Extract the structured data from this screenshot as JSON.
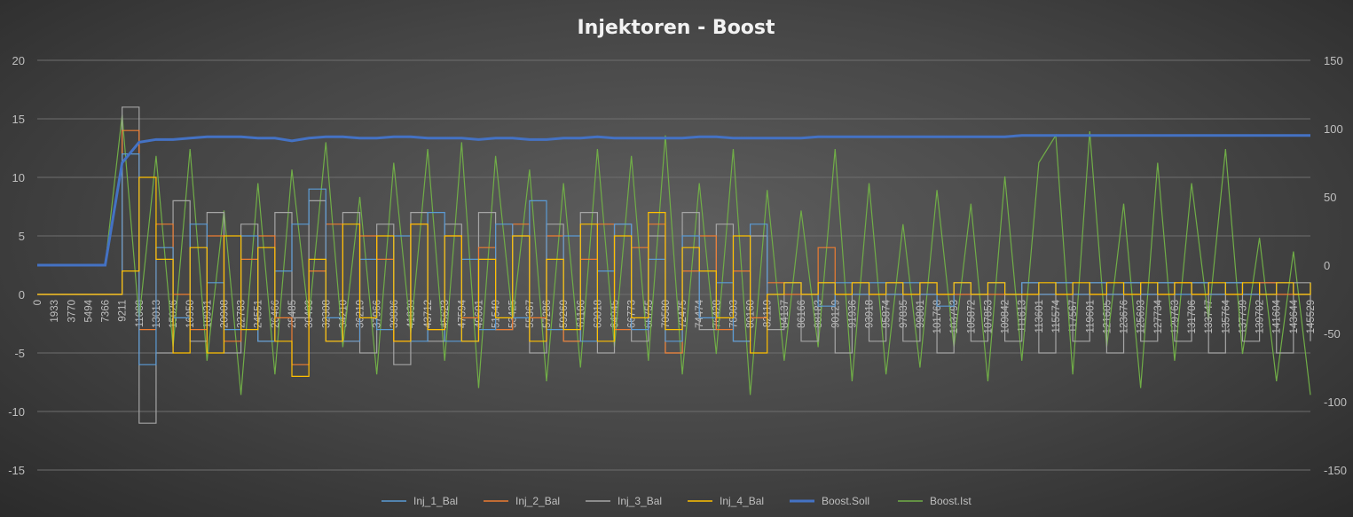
{
  "chart_data": {
    "type": "line",
    "title": "Injektoren - Boost",
    "grid": "horizontal",
    "legend_position": "bottom",
    "y_left": {
      "range": [
        -15,
        20
      ],
      "ticks": [
        20,
        15,
        10,
        5,
        0,
        -5,
        -10,
        -15
      ]
    },
    "y_right": {
      "range": [
        -150,
        150
      ],
      "ticks": [
        150,
        100,
        50,
        0,
        -50,
        -100,
        -150
      ]
    },
    "x": [
      0,
      1933,
      3770,
      5494,
      7366,
      9211,
      11088,
      13013,
      15026,
      16950,
      18931,
      20908,
      22783,
      24551,
      26466,
      28485,
      30403,
      32308,
      34210,
      36219,
      37966,
      39886,
      41839,
      43712,
      45623,
      47594,
      49601,
      51549,
      53425,
      55367,
      57286,
      59269,
      61106,
      63018,
      64945,
      66773,
      68755,
      70580,
      72475,
      74474,
      76428,
      78303,
      80160,
      82119,
      84137,
      86166,
      88183,
      90129,
      91936,
      93918,
      95874,
      97835,
      99801,
      101768,
      103793,
      105872,
      107853,
      109842,
      111613,
      113601,
      115574,
      117567,
      119601,
      121605,
      123676,
      125693,
      127734,
      129763,
      131706,
      133747,
      135764,
      137739,
      139702,
      141604,
      143644,
      145529
    ],
    "series": [
      {
        "name": "Inj_1_Bal",
        "axis": "left",
        "color": "#5b9bd5",
        "values": [
          0,
          0,
          0,
          0,
          0,
          12,
          -6,
          4,
          -2,
          6,
          1,
          -3,
          5,
          -4,
          2,
          6,
          9,
          -2,
          -4,
          3,
          -3,
          5,
          -4,
          7,
          -4,
          3,
          -3,
          6,
          -2,
          8,
          -3,
          5,
          -4,
          2,
          6,
          -3,
          3,
          -4,
          5,
          -2,
          1,
          -4,
          6,
          0,
          1,
          0,
          -1,
          1,
          0,
          1,
          0,
          1,
          0,
          -1,
          1,
          0,
          1,
          0,
          1,
          0,
          1,
          0,
          1,
          0,
          1,
          0,
          1,
          0,
          1,
          0,
          1,
          0,
          0,
          1,
          0,
          1
        ]
      },
      {
        "name": "Inj_2_Bal",
        "axis": "left",
        "color": "#ed7d31",
        "values": [
          0,
          0,
          0,
          0,
          0,
          14,
          -3,
          6,
          0,
          -3,
          5,
          -4,
          3,
          5,
          -2,
          -6,
          2,
          6,
          -4,
          5,
          3,
          -4,
          6,
          -3,
          5,
          -2,
          4,
          -3,
          6,
          -2,
          5,
          -4,
          3,
          6,
          -3,
          4,
          6,
          -5,
          2,
          5,
          -3,
          2,
          -2,
          1,
          0,
          0,
          4,
          0,
          0,
          0,
          0,
          0,
          0,
          0,
          0,
          0,
          0,
          0,
          0,
          0,
          0,
          0,
          0,
          0,
          0,
          0,
          0,
          1,
          0,
          0,
          0,
          0,
          1,
          0,
          0,
          0
        ]
      },
      {
        "name": "Inj_3_Bal",
        "axis": "left",
        "color": "#a5a5a5",
        "values": [
          0,
          0,
          0,
          0,
          0,
          16,
          -11,
          -5,
          8,
          -4,
          7,
          -5,
          6,
          -4,
          7,
          -2,
          8,
          -4,
          7,
          -5,
          6,
          -6,
          7,
          -4,
          6,
          -4,
          7,
          -3,
          5,
          -5,
          6,
          -4,
          7,
          -5,
          6,
          -4,
          5,
          -5,
          7,
          -3,
          6,
          -4,
          5,
          -3,
          1,
          -4,
          1,
          -5,
          1,
          -4,
          1,
          -4,
          1,
          -5,
          1,
          -4,
          1,
          -4,
          1,
          -5,
          1,
          -4,
          1,
          -5,
          1,
          -4,
          1,
          -4,
          1,
          -5,
          1,
          -4,
          1,
          -5,
          1,
          -4
        ]
      },
      {
        "name": "Inj_4_Bal",
        "axis": "left",
        "color": "#ffc000",
        "values": [
          0,
          0,
          0,
          0,
          0,
          2,
          10,
          3,
          -5,
          4,
          -5,
          5,
          -3,
          4,
          -4,
          -7,
          3,
          -4,
          6,
          -2,
          5,
          -4,
          6,
          -3,
          5,
          -4,
          3,
          -2,
          5,
          -4,
          3,
          -3,
          6,
          -4,
          5,
          -2,
          7,
          -3,
          4,
          2,
          -2,
          5,
          -5,
          0,
          1,
          0,
          1,
          0,
          1,
          0,
          1,
          0,
          1,
          0,
          1,
          0,
          1,
          0,
          0,
          1,
          0,
          1,
          0,
          1,
          0,
          1,
          0,
          1,
          0,
          1,
          0,
          1,
          0,
          1,
          0,
          1
        ]
      },
      {
        "name": "Boost.Soll",
        "axis": "right",
        "color": "#4472c4",
        "values": [
          0,
          0,
          0,
          0,
          0,
          75,
          90,
          92,
          92,
          93,
          94,
          94,
          94,
          93,
          93,
          91,
          93,
          94,
          94,
          93,
          93,
          94,
          94,
          93,
          93,
          93,
          92,
          93,
          93,
          92,
          92,
          93,
          93,
          94,
          93,
          93,
          93,
          93,
          93,
          94,
          94,
          93,
          93,
          93,
          93,
          93,
          94,
          94,
          94,
          94,
          94,
          94,
          94,
          94,
          94,
          94,
          94,
          94,
          95,
          95,
          95,
          95,
          95,
          95,
          95,
          95,
          95,
          95,
          95,
          95,
          95,
          95,
          95,
          95,
          95,
          95
        ]
      },
      {
        "name": "Boost.Ist",
        "axis": "right",
        "color": "#70ad47",
        "values": [
          0,
          0,
          0,
          0,
          0,
          110,
          -40,
          80,
          -60,
          85,
          -70,
          40,
          -95,
          60,
          -80,
          70,
          -40,
          90,
          -60,
          50,
          -80,
          75,
          -50,
          85,
          -70,
          90,
          -90,
          80,
          -40,
          70,
          -85,
          60,
          -75,
          85,
          -60,
          80,
          -70,
          95,
          -80,
          60,
          -65,
          85,
          -95,
          55,
          -70,
          40,
          -60,
          85,
          -85,
          60,
          -80,
          30,
          -75,
          55,
          -60,
          45,
          -85,
          65,
          -70,
          75,
          95,
          -80,
          98,
          -60,
          45,
          -90,
          75,
          -70,
          60,
          -40,
          85,
          -65,
          20,
          -85,
          10,
          -95
        ]
      }
    ]
  }
}
